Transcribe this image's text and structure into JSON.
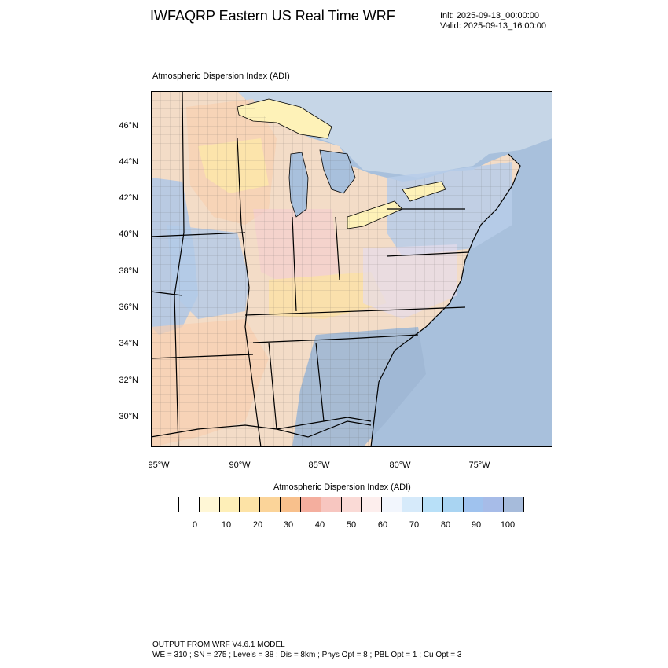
{
  "header": {
    "title": "IWFAQRP Eastern US Real Time WRF",
    "init": "Init: 2025-09-13_00:00:00",
    "valid": "Valid: 2025-09-13_16:00:00"
  },
  "plot": {
    "title": "Atmospheric Dispersion Index   (ADI)"
  },
  "map": {
    "lat_labels": [
      "46°N",
      "44°N",
      "42°N",
      "40°N",
      "38°N",
      "36°N",
      "34°N",
      "32°N",
      "30°N"
    ],
    "lon_labels": [
      "95°W",
      "90°W",
      "85°W",
      "80°W",
      "75°W"
    ],
    "colors": {
      "water": "#a8c0dc",
      "border": "#000000",
      "county_line": "#555555"
    }
  },
  "legend": {
    "title": "Atmospheric Dispersion Index  (ADI)",
    "tick_labels": [
      "0",
      "10",
      "20",
      "30",
      "40",
      "50",
      "60",
      "70",
      "80",
      "90",
      "100"
    ],
    "colors": [
      "#ffffff",
      "#fff7d6",
      "#feefb8",
      "#fde3a6",
      "#fbd499",
      "#f8c08c",
      "#f4ae9e",
      "#f7c6c0",
      "#fadad6",
      "#fdeeed",
      "#f2f6fd",
      "#d6eafa",
      "#b8e0f8",
      "#a9d4f2",
      "#9fc2ee",
      "#a7bce8",
      "#a6bbdb"
    ]
  },
  "footer": {
    "model": "OUTPUT FROM WRF V4.6.1 MODEL",
    "config": "WE = 310 ; SN = 275 ; Levels = 38 ; Dis = 8km ; Phys Opt = 8 ; PBL Opt = 1 ; Cu Opt = 3"
  }
}
